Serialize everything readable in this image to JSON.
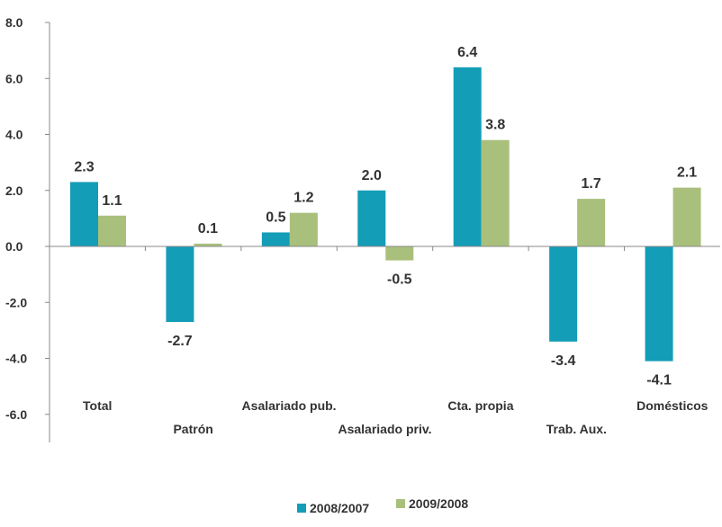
{
  "chart_data": {
    "type": "bar",
    "categories": [
      "Total",
      "Patrón",
      "Asalariado pub.",
      "Asalariado priv.",
      "Cta. propia",
      "Trab. Aux.",
      "Domésticos"
    ],
    "series": [
      {
        "name": "2008/2007",
        "color": "#139db7",
        "values": [
          2.3,
          -2.7,
          0.5,
          2.0,
          6.4,
          -3.4,
          -4.1
        ]
      },
      {
        "name": "2009/2008",
        "color": "#a9c07c",
        "values": [
          1.1,
          0.1,
          1.2,
          -0.5,
          3.8,
          1.7,
          2.1
        ]
      }
    ],
    "data_labels": [
      [
        "2.3",
        "-2.7",
        "0.5",
        "2.0",
        "6.4",
        "-3.4",
        "-4.1"
      ],
      [
        "1.1",
        "0.1",
        "1.2",
        "-0.5",
        "3.8",
        "1.7",
        "2.1"
      ]
    ],
    "yticks": [
      "8.0",
      "6.0",
      "4.0",
      "2.0",
      "0.0",
      "-2.0",
      "-4.0",
      "-6.0"
    ],
    "ylim": [
      -7,
      8
    ],
    "grid": false,
    "legend_position": "bottom"
  }
}
